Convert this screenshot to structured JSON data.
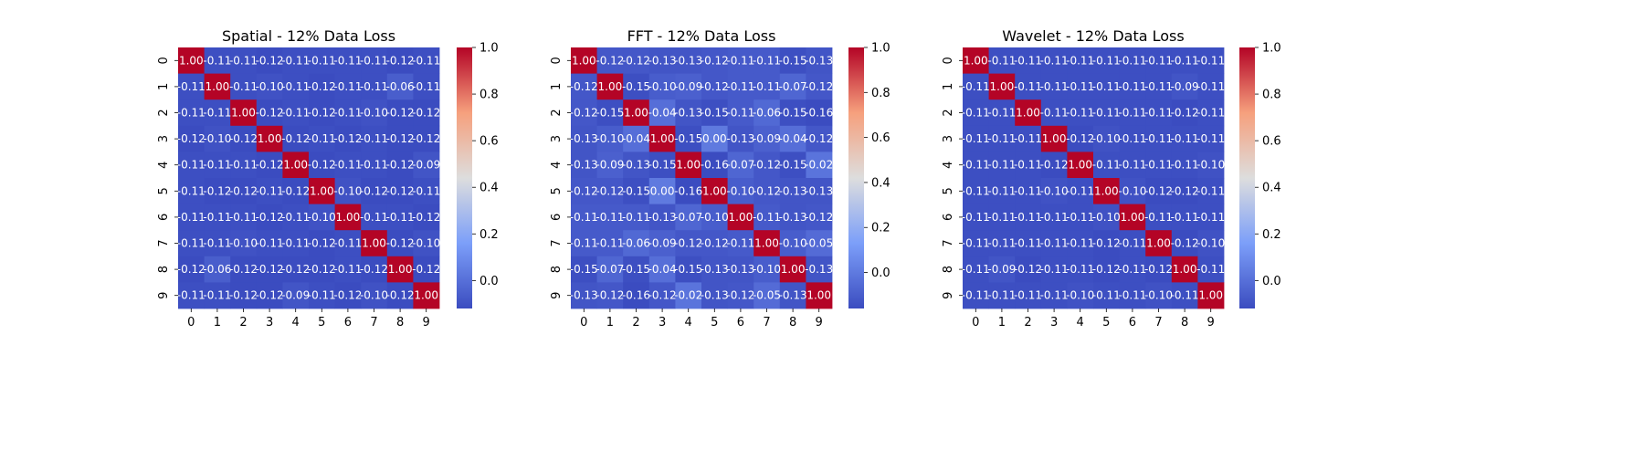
{
  "chart_data": [
    {
      "type": "heatmap",
      "title": "Spatial - 12% Data Loss",
      "x_categories": [
        "0",
        "1",
        "2",
        "3",
        "4",
        "5",
        "6",
        "7",
        "8",
        "9"
      ],
      "y_categories": [
        "0",
        "1",
        "2",
        "3",
        "4",
        "5",
        "6",
        "7",
        "8",
        "9"
      ],
      "colormap": "coolwarm",
      "vmin": -0.12,
      "vmax": 1.0,
      "colorbar_ticks": [
        "0.0",
        "0.2",
        "0.4",
        "0.6",
        "0.8",
        "1.0"
      ],
      "values": [
        [
          1.0,
          -0.11,
          -0.11,
          -0.12,
          -0.11,
          -0.11,
          -0.11,
          -0.11,
          -0.12,
          -0.11
        ],
        [
          -0.11,
          1.0,
          -0.11,
          -0.1,
          -0.11,
          -0.12,
          -0.11,
          -0.11,
          -0.06,
          -0.11
        ],
        [
          -0.11,
          -0.11,
          1.0,
          -0.12,
          -0.11,
          -0.12,
          -0.11,
          -0.1,
          -0.12,
          -0.12
        ],
        [
          -0.12,
          -0.1,
          -0.12,
          1.0,
          -0.12,
          -0.11,
          -0.12,
          -0.11,
          -0.12,
          -0.12
        ],
        [
          -0.11,
          -0.11,
          -0.11,
          -0.12,
          1.0,
          -0.12,
          -0.11,
          -0.11,
          -0.12,
          -0.09
        ],
        [
          -0.11,
          -0.12,
          -0.12,
          -0.11,
          -0.12,
          1.0,
          -0.1,
          -0.12,
          -0.12,
          -0.11
        ],
        [
          -0.11,
          -0.11,
          -0.11,
          -0.12,
          -0.11,
          -0.1,
          1.0,
          -0.11,
          -0.11,
          -0.12
        ],
        [
          -0.11,
          -0.11,
          -0.1,
          -0.11,
          -0.11,
          -0.12,
          -0.11,
          1.0,
          -0.12,
          -0.1
        ],
        [
          -0.12,
          -0.06,
          -0.12,
          -0.12,
          -0.12,
          -0.12,
          -0.11,
          -0.12,
          1.0,
          -0.12
        ],
        [
          -0.11,
          -0.11,
          -0.12,
          -0.12,
          -0.09,
          -0.11,
          -0.12,
          -0.1,
          -0.12,
          1.0
        ]
      ]
    },
    {
      "type": "heatmap",
      "title": "FFT - 12% Data Loss",
      "x_categories": [
        "0",
        "1",
        "2",
        "3",
        "4",
        "5",
        "6",
        "7",
        "8",
        "9"
      ],
      "y_categories": [
        "0",
        "1",
        "2",
        "3",
        "4",
        "5",
        "6",
        "7",
        "8",
        "9"
      ],
      "colormap": "coolwarm",
      "vmin": -0.16,
      "vmax": 1.0,
      "colorbar_ticks": [
        "0.0",
        "0.2",
        "0.4",
        "0.6",
        "0.8",
        "1.0"
      ],
      "values": [
        [
          1.0,
          -0.12,
          -0.12,
          -0.13,
          -0.13,
          -0.12,
          -0.11,
          -0.11,
          -0.15,
          -0.13
        ],
        [
          -0.12,
          1.0,
          -0.15,
          -0.1,
          -0.09,
          -0.12,
          -0.11,
          -0.11,
          -0.07,
          -0.12
        ],
        [
          -0.12,
          -0.15,
          1.0,
          -0.04,
          -0.13,
          -0.15,
          -0.11,
          -0.06,
          -0.15,
          -0.16
        ],
        [
          -0.13,
          -0.1,
          -0.04,
          1.0,
          -0.15,
          -0.0,
          -0.13,
          -0.09,
          -0.04,
          -0.12
        ],
        [
          -0.13,
          -0.09,
          -0.13,
          -0.15,
          1.0,
          -0.16,
          -0.07,
          -0.12,
          -0.15,
          -0.02
        ],
        [
          -0.12,
          -0.12,
          -0.15,
          -0.0,
          -0.16,
          1.0,
          -0.1,
          -0.12,
          -0.13,
          -0.13
        ],
        [
          -0.11,
          -0.11,
          -0.11,
          -0.13,
          -0.07,
          -0.1,
          1.0,
          -0.11,
          -0.13,
          -0.12
        ],
        [
          -0.11,
          -0.11,
          -0.06,
          -0.09,
          -0.12,
          -0.12,
          -0.11,
          1.0,
          -0.1,
          -0.05
        ],
        [
          -0.15,
          -0.07,
          -0.15,
          -0.04,
          -0.15,
          -0.13,
          -0.13,
          -0.1,
          1.0,
          -0.13
        ],
        [
          -0.13,
          -0.12,
          -0.16,
          -0.12,
          -0.02,
          -0.13,
          -0.12,
          -0.05,
          -0.13,
          1.0
        ]
      ]
    },
    {
      "type": "heatmap",
      "title": "Wavelet - 12% Data Loss",
      "x_categories": [
        "0",
        "1",
        "2",
        "3",
        "4",
        "5",
        "6",
        "7",
        "8",
        "9"
      ],
      "y_categories": [
        "0",
        "1",
        "2",
        "3",
        "4",
        "5",
        "6",
        "7",
        "8",
        "9"
      ],
      "colormap": "coolwarm",
      "vmin": -0.12,
      "vmax": 1.0,
      "colorbar_ticks": [
        "0.0",
        "0.2",
        "0.4",
        "0.6",
        "0.8",
        "1.0"
      ],
      "values": [
        [
          1.0,
          -0.11,
          -0.11,
          -0.11,
          -0.11,
          -0.11,
          -0.11,
          -0.11,
          -0.11,
          -0.11
        ],
        [
          -0.11,
          1.0,
          -0.11,
          -0.11,
          -0.11,
          -0.11,
          -0.11,
          -0.11,
          -0.09,
          -0.11
        ],
        [
          -0.11,
          -0.11,
          1.0,
          -0.11,
          -0.11,
          -0.11,
          -0.11,
          -0.11,
          -0.12,
          -0.11
        ],
        [
          -0.11,
          -0.11,
          -0.11,
          1.0,
          -0.12,
          -0.1,
          -0.11,
          -0.11,
          -0.11,
          -0.11
        ],
        [
          -0.11,
          -0.11,
          -0.11,
          -0.12,
          1.0,
          -0.11,
          -0.11,
          -0.11,
          -0.11,
          -0.1
        ],
        [
          -0.11,
          -0.11,
          -0.11,
          -0.1,
          -0.11,
          1.0,
          -0.1,
          -0.12,
          -0.12,
          -0.11
        ],
        [
          -0.11,
          -0.11,
          -0.11,
          -0.11,
          -0.11,
          -0.1,
          1.0,
          -0.11,
          -0.11,
          -0.11
        ],
        [
          -0.11,
          -0.11,
          -0.11,
          -0.11,
          -0.11,
          -0.12,
          -0.11,
          1.0,
          -0.12,
          -0.1
        ],
        [
          -0.11,
          -0.09,
          -0.12,
          -0.11,
          -0.11,
          -0.12,
          -0.11,
          -0.12,
          1.0,
          -0.11
        ],
        [
          -0.11,
          -0.11,
          -0.11,
          -0.11,
          -0.1,
          -0.11,
          -0.11,
          -0.1,
          -0.11,
          1.0
        ]
      ]
    }
  ]
}
